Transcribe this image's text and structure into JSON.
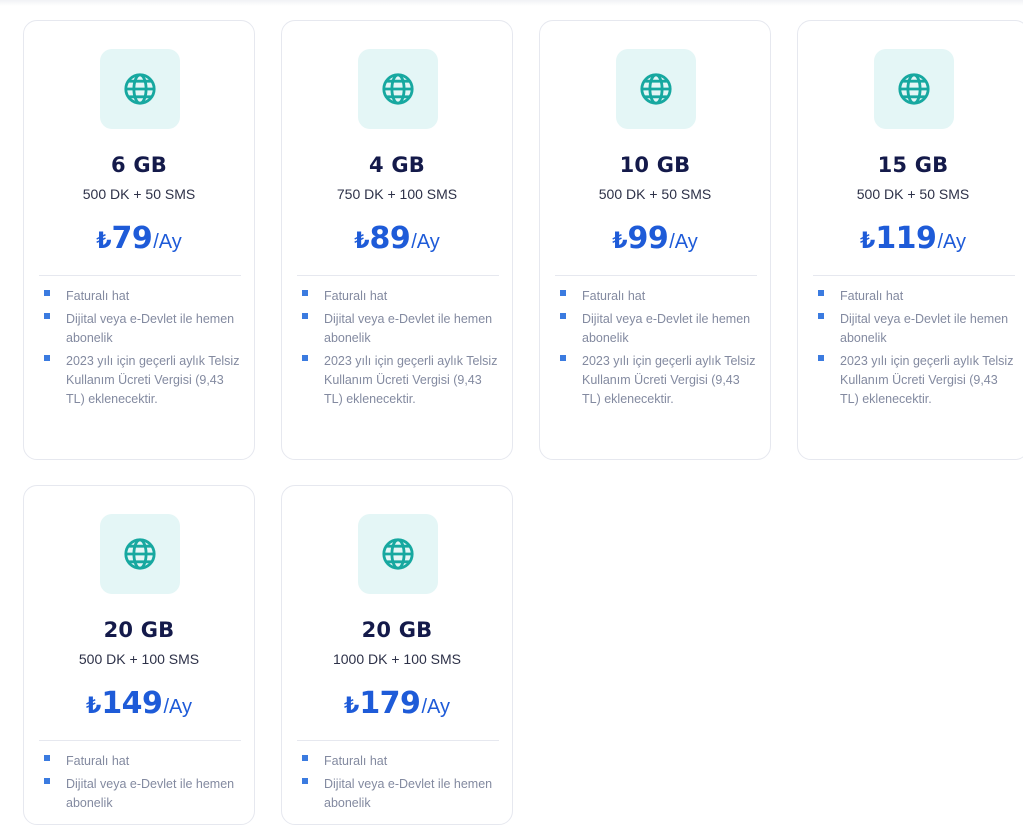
{
  "plans": [
    {
      "gb": "6 GB",
      "minutes": "500 DK + 50 SMS",
      "currency": "₺",
      "amount": "79",
      "period": "/Ay",
      "features": [
        "Faturalı hat",
        "Dijital veya e-Devlet ile hemen abonelik",
        "2023 yılı için geçerli aylık Telsiz Kullanım Ücreti Vergisi (9,43 TL) eklenecektir."
      ]
    },
    {
      "gb": "4 GB",
      "minutes": "750 DK + 100 SMS",
      "currency": "₺",
      "amount": "89",
      "period": "/Ay",
      "features": [
        "Faturalı hat",
        "Dijital veya e-Devlet ile hemen abonelik",
        "2023 yılı için geçerli aylık Telsiz Kullanım Ücreti Vergisi (9,43 TL) eklenecektir."
      ]
    },
    {
      "gb": "10 GB",
      "minutes": "500 DK + 50 SMS",
      "currency": "₺",
      "amount": "99",
      "period": "/Ay",
      "features": [
        "Faturalı hat",
        "Dijital veya e-Devlet ile hemen abonelik",
        "2023 yılı için geçerli aylık Telsiz Kullanım Ücreti Vergisi (9,43 TL) eklenecektir."
      ]
    },
    {
      "gb": "15 GB",
      "minutes": "500 DK + 50 SMS",
      "currency": "₺",
      "amount": "119",
      "period": "/Ay",
      "features": [
        "Faturalı hat",
        "Dijital veya e-Devlet ile hemen abonelik",
        "2023 yılı için geçerli aylık Telsiz Kullanım Ücreti Vergisi (9,43 TL) eklenecektir."
      ]
    },
    {
      "gb": "20 GB",
      "minutes": "500 DK + 100 SMS",
      "currency": "₺",
      "amount": "149",
      "period": "/Ay",
      "features": [
        "Faturalı hat",
        "Dijital veya e-Devlet ile hemen abonelik"
      ]
    },
    {
      "gb": "20 GB",
      "minutes": "1000 DK + 100 SMS",
      "currency": "₺",
      "amount": "179",
      "period": "/Ay",
      "features": [
        "Faturalı hat",
        "Dijital veya e-Devlet ile hemen abonelik"
      ]
    }
  ],
  "icon": "globe-icon",
  "colors": {
    "price": "#1e5bd8",
    "title": "#141a4a",
    "icon": "#17a8a0",
    "icon_bg": "#e4f6f6",
    "bullet": "#3b7be0",
    "feature_text": "#838aa0"
  }
}
